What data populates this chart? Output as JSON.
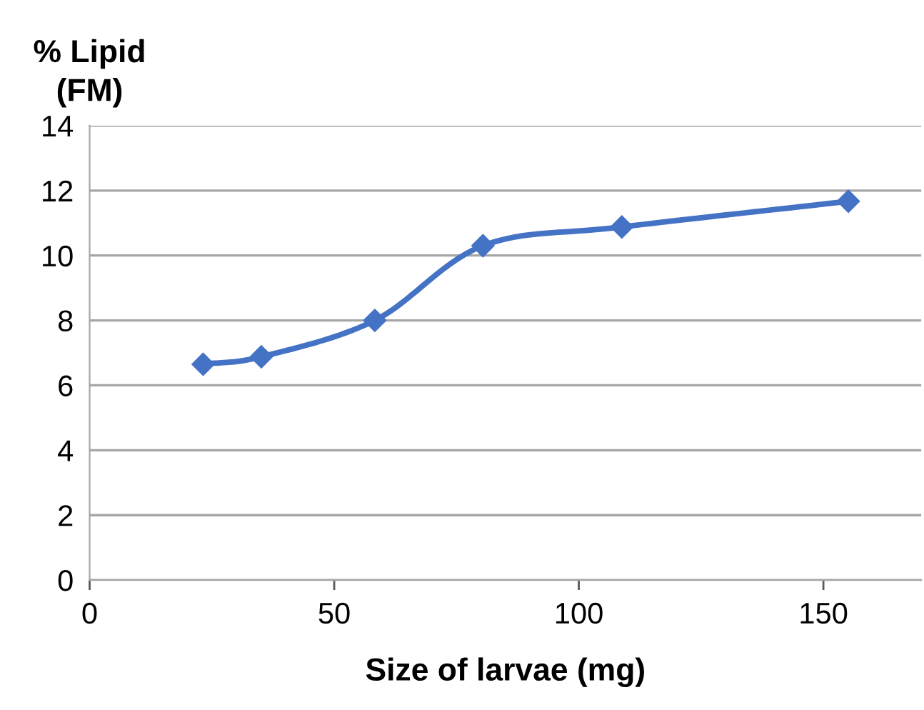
{
  "chart_data": {
    "type": "line",
    "xlabel": "Size of larvae (mg)",
    "ylabel": "% Lipid\n(FM)",
    "x": [
      23.2,
      35.1,
      58.3,
      80.4,
      108.8,
      155.1
    ],
    "series": [
      {
        "color": "#4472c4",
        "values": [
          6.65,
          6.88,
          8.0,
          10.3,
          10.88,
          11.67
        ]
      }
    ],
    "xlim": [
      0,
      170
    ],
    "xticks": [
      0,
      50,
      100,
      150
    ],
    "ylim": [
      0,
      14
    ],
    "yticks": [
      0,
      2,
      4,
      6,
      8,
      10,
      12,
      14
    ],
    "grid": "y",
    "marker": "diamond",
    "line_style": "solid",
    "legend": false
  }
}
